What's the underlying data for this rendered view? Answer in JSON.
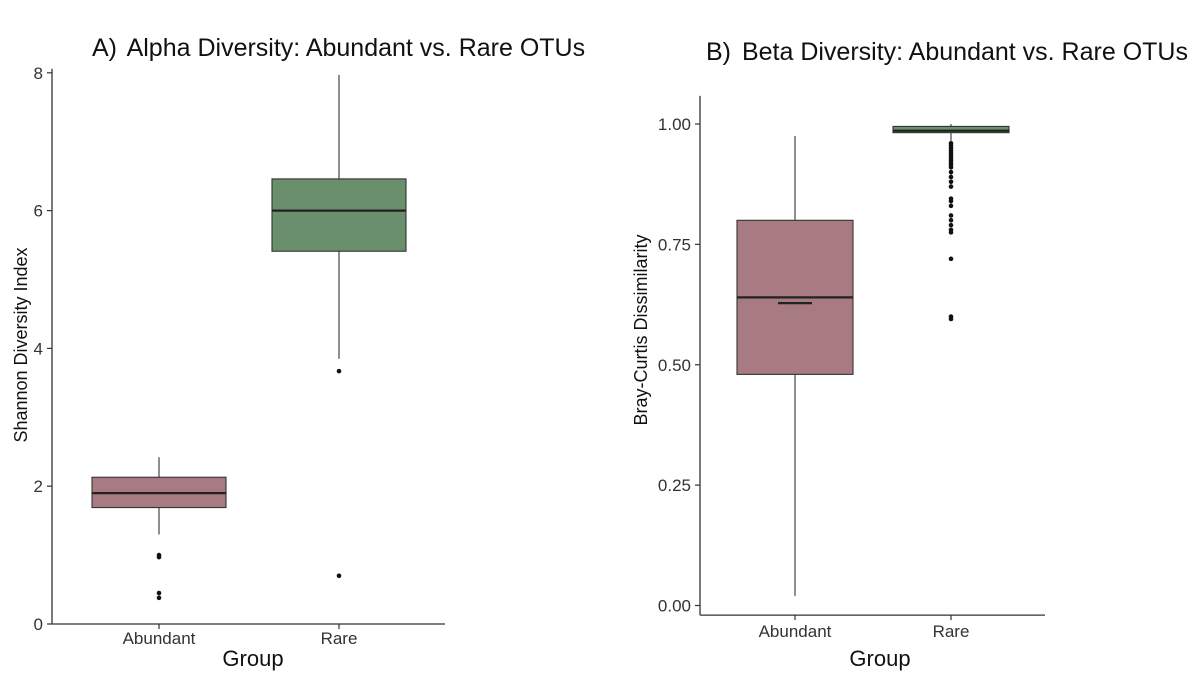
{
  "chart_data": [
    {
      "type": "boxplot",
      "panel": "A)",
      "title": "Alpha Diversity: Abundant vs. Rare OTUs",
      "xlabel": "Group",
      "ylabel": "Shannon Diversity Index",
      "ylim": [
        0,
        8
      ],
      "yticks": [
        0,
        2,
        4,
        6,
        8
      ],
      "ytick_labels": [
        "0",
        "2",
        "4",
        "6",
        "8"
      ],
      "categories": [
        "Abundant",
        "Rare"
      ],
      "boxes": [
        {
          "name": "Abundant",
          "whisker_low": 1.3,
          "q1": 1.69,
          "median": 1.9,
          "q3": 2.13,
          "whisker_high": 2.42,
          "outliers": [
            1.0,
            0.97,
            0.45,
            0.38
          ],
          "color": "#a87a82"
        },
        {
          "name": "Rare",
          "whisker_low": 3.85,
          "q1": 5.41,
          "median": 6.0,
          "q3": 6.46,
          "whisker_high": 7.97,
          "outliers": [
            3.67,
            0.7
          ],
          "color": "#6a8f6c"
        }
      ]
    },
    {
      "type": "boxplot",
      "panel": "B)",
      "title": "Beta Diversity: Abundant vs. Rare OTUs",
      "xlabel": "Group",
      "ylabel": "Bray-Curtis Dissimilarity",
      "ylim": [
        -0.02,
        1.05
      ],
      "yticks": [
        0,
        0.25,
        0.5,
        0.75,
        1.0
      ],
      "ytick_labels": [
        "0.00",
        "0.25",
        "0.50",
        "0.75",
        "1.00"
      ],
      "categories": [
        "Abundant",
        "Rare"
      ],
      "boxes": [
        {
          "name": "Abundant",
          "whisker_low": 0.02,
          "q1": 0.48,
          "median": 0.64,
          "q3": 0.8,
          "whisker_high": 0.975,
          "mean": 0.628,
          "outliers": [],
          "color": "#a87a82"
        },
        {
          "name": "Rare",
          "whisker_low": 0.965,
          "q1": 0.982,
          "median": 0.986,
          "q3": 0.995,
          "whisker_high": 1.0,
          "outliers": [
            0.96,
            0.955,
            0.95,
            0.945,
            0.94,
            0.935,
            0.93,
            0.925,
            0.92,
            0.915,
            0.91,
            0.9,
            0.89,
            0.88,
            0.87,
            0.845,
            0.84,
            0.83,
            0.81,
            0.8,
            0.79,
            0.78,
            0.775,
            0.72,
            0.6,
            0.595
          ],
          "color": "#6a8f6c"
        }
      ]
    }
  ]
}
